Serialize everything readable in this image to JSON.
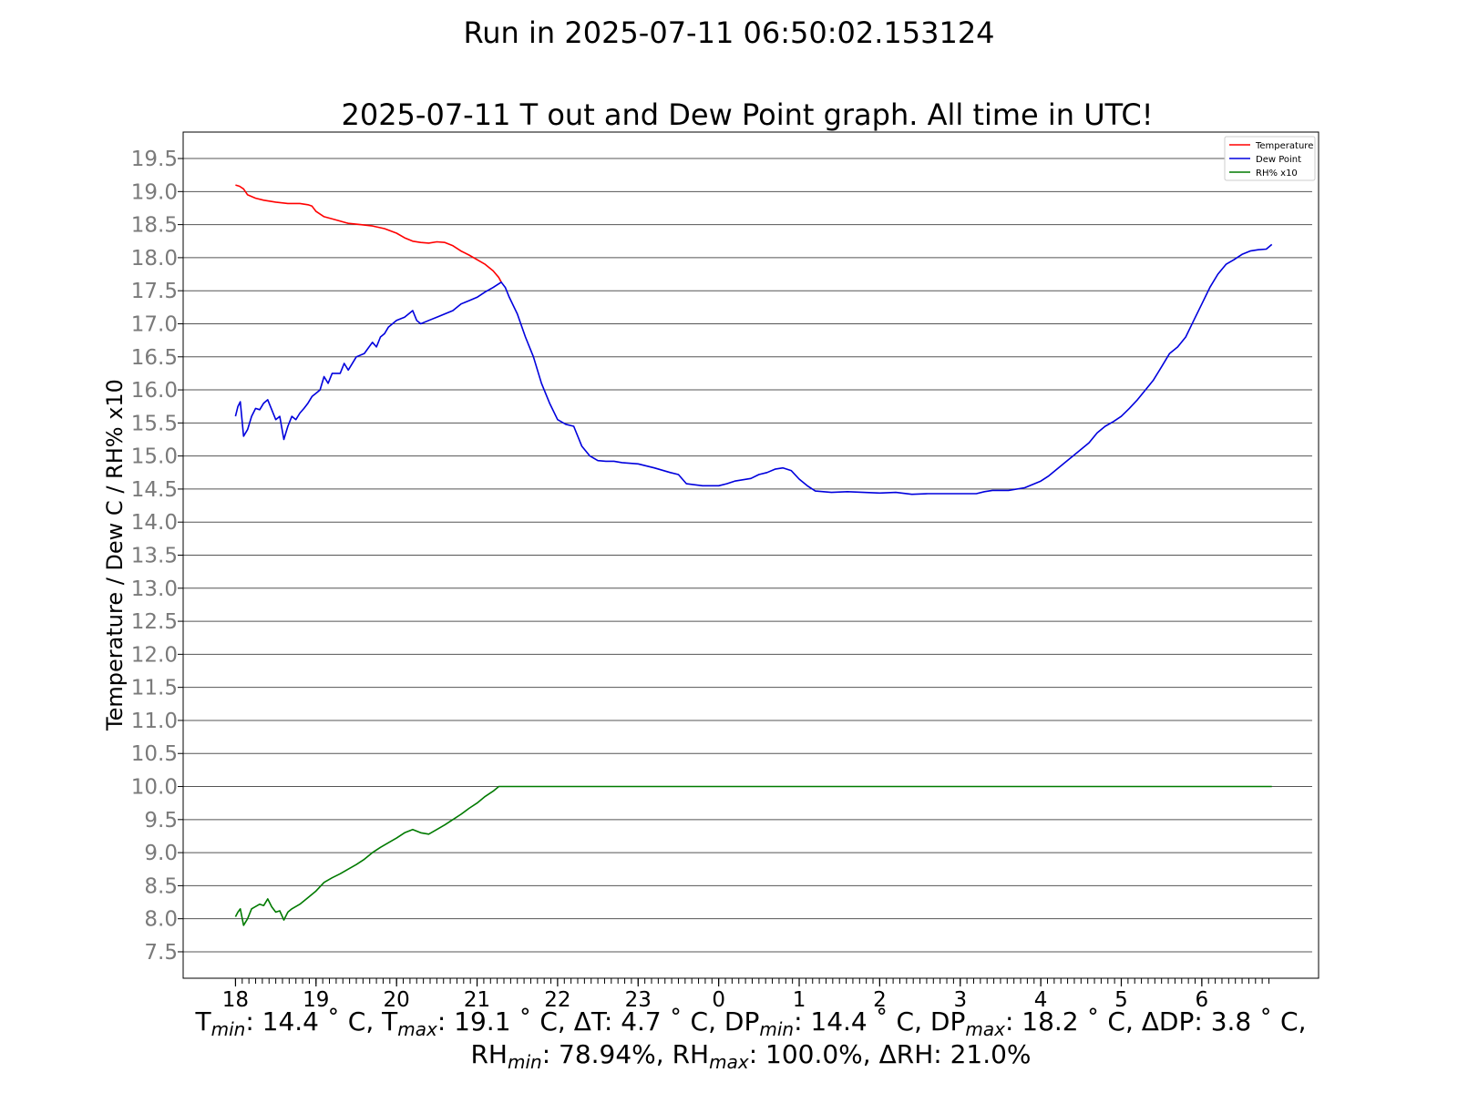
{
  "figure": {
    "suptitle": "Run in 2025-07-11 06:50:02.153124"
  },
  "chart_data": {
    "type": "line",
    "title": "2025-07-11 T out and Dew Point graph. All time in UTC!",
    "ylabel": "Temperature / Dew C / RH% x10",
    "xlabel": "",
    "ylim": [
      7.1,
      19.9
    ],
    "y_ticks": [
      "7.5",
      "8.0",
      "8.5",
      "9.0",
      "9.5",
      "10.0",
      "10.5",
      "11.0",
      "11.5",
      "12.0",
      "12.5",
      "13.0",
      "13.5",
      "14.0",
      "14.5",
      "15.0",
      "15.5",
      "16.0",
      "16.5",
      "17.0",
      "17.5",
      "18.0",
      "18.5",
      "19.0",
      "19.5"
    ],
    "x_ticks": [
      "18",
      "19",
      "20",
      "21",
      "22",
      "23",
      "0",
      "1",
      "2",
      "3",
      "4",
      "5",
      "6"
    ],
    "x_unit": "hour (UTC), hours elapsed from 18:00 on the x axis",
    "xlim": [
      -0.65,
      13.45
    ],
    "grid": "horizontal",
    "legend": "top-right",
    "series": [
      {
        "name": "Temperature",
        "color": "#ff0000",
        "points": [
          [
            0.0,
            19.1
          ],
          [
            0.05,
            19.08
          ],
          [
            0.1,
            19.04
          ],
          [
            0.15,
            18.95
          ],
          [
            0.25,
            18.9
          ],
          [
            0.35,
            18.87
          ],
          [
            0.5,
            18.84
          ],
          [
            0.65,
            18.82
          ],
          [
            0.8,
            18.82
          ],
          [
            0.9,
            18.8
          ],
          [
            0.95,
            18.78
          ],
          [
            1.0,
            18.7
          ],
          [
            1.1,
            18.62
          ],
          [
            1.25,
            18.57
          ],
          [
            1.4,
            18.52
          ],
          [
            1.55,
            18.5
          ],
          [
            1.7,
            18.48
          ],
          [
            1.85,
            18.44
          ],
          [
            2.0,
            18.37
          ],
          [
            2.1,
            18.3
          ],
          [
            2.2,
            18.25
          ],
          [
            2.3,
            18.23
          ],
          [
            2.4,
            18.22
          ],
          [
            2.5,
            18.24
          ],
          [
            2.6,
            18.23
          ],
          [
            2.7,
            18.18
          ],
          [
            2.8,
            18.1
          ],
          [
            2.9,
            18.04
          ],
          [
            3.0,
            17.97
          ],
          [
            3.1,
            17.9
          ],
          [
            3.2,
            17.8
          ],
          [
            3.27,
            17.7
          ],
          [
            3.3,
            17.63
          ]
        ]
      },
      {
        "name": "Dew Point",
        "color": "#0000dd",
        "points": [
          [
            0.0,
            15.6
          ],
          [
            0.03,
            15.75
          ],
          [
            0.06,
            15.82
          ],
          [
            0.1,
            15.3
          ],
          [
            0.15,
            15.4
          ],
          [
            0.2,
            15.6
          ],
          [
            0.25,
            15.72
          ],
          [
            0.3,
            15.7
          ],
          [
            0.35,
            15.8
          ],
          [
            0.4,
            15.85
          ],
          [
            0.45,
            15.7
          ],
          [
            0.5,
            15.55
          ],
          [
            0.55,
            15.6
          ],
          [
            0.6,
            15.25
          ],
          [
            0.65,
            15.45
          ],
          [
            0.7,
            15.6
          ],
          [
            0.75,
            15.55
          ],
          [
            0.8,
            15.65
          ],
          [
            0.85,
            15.72
          ],
          [
            0.9,
            15.8
          ],
          [
            0.95,
            15.9
          ],
          [
            1.0,
            15.95
          ],
          [
            1.05,
            16.0
          ],
          [
            1.1,
            16.2
          ],
          [
            1.15,
            16.1
          ],
          [
            1.2,
            16.25
          ],
          [
            1.3,
            16.25
          ],
          [
            1.35,
            16.4
          ],
          [
            1.4,
            16.3
          ],
          [
            1.5,
            16.5
          ],
          [
            1.6,
            16.55
          ],
          [
            1.7,
            16.72
          ],
          [
            1.75,
            16.65
          ],
          [
            1.8,
            16.8
          ],
          [
            1.85,
            16.85
          ],
          [
            1.9,
            16.95
          ],
          [
            2.0,
            17.05
          ],
          [
            2.1,
            17.1
          ],
          [
            2.2,
            17.2
          ],
          [
            2.25,
            17.05
          ],
          [
            2.3,
            17.0
          ],
          [
            2.4,
            17.05
          ],
          [
            2.5,
            17.1
          ],
          [
            2.6,
            17.15
          ],
          [
            2.7,
            17.2
          ],
          [
            2.8,
            17.3
          ],
          [
            2.9,
            17.35
          ],
          [
            3.0,
            17.4
          ],
          [
            3.1,
            17.48
          ],
          [
            3.2,
            17.55
          ],
          [
            3.3,
            17.63
          ],
          [
            3.35,
            17.55
          ],
          [
            3.4,
            17.4
          ],
          [
            3.5,
            17.15
          ],
          [
            3.6,
            16.8
          ],
          [
            3.7,
            16.5
          ],
          [
            3.8,
            16.1
          ],
          [
            3.9,
            15.8
          ],
          [
            4.0,
            15.55
          ],
          [
            4.1,
            15.48
          ],
          [
            4.2,
            15.45
          ],
          [
            4.3,
            15.15
          ],
          [
            4.4,
            15.0
          ],
          [
            4.5,
            14.93
          ],
          [
            4.6,
            14.92
          ],
          [
            4.7,
            14.92
          ],
          [
            4.8,
            14.9
          ],
          [
            5.0,
            14.88
          ],
          [
            5.2,
            14.82
          ],
          [
            5.4,
            14.75
          ],
          [
            5.5,
            14.72
          ],
          [
            5.6,
            14.58
          ],
          [
            5.8,
            14.55
          ],
          [
            6.0,
            14.55
          ],
          [
            6.1,
            14.58
          ],
          [
            6.2,
            14.62
          ],
          [
            6.4,
            14.66
          ],
          [
            6.5,
            14.72
          ],
          [
            6.6,
            14.75
          ],
          [
            6.7,
            14.8
          ],
          [
            6.8,
            14.82
          ],
          [
            6.9,
            14.78
          ],
          [
            7.0,
            14.65
          ],
          [
            7.1,
            14.55
          ],
          [
            7.2,
            14.47
          ],
          [
            7.4,
            14.45
          ],
          [
            7.6,
            14.46
          ],
          [
            7.8,
            14.45
          ],
          [
            8.0,
            14.44
          ],
          [
            8.2,
            14.45
          ],
          [
            8.4,
            14.42
          ],
          [
            8.6,
            14.43
          ],
          [
            8.8,
            14.43
          ],
          [
            9.0,
            14.43
          ],
          [
            9.2,
            14.43
          ],
          [
            9.3,
            14.46
          ],
          [
            9.4,
            14.48
          ],
          [
            9.6,
            14.48
          ],
          [
            9.8,
            14.52
          ],
          [
            10.0,
            14.62
          ],
          [
            10.1,
            14.7
          ],
          [
            10.2,
            14.8
          ],
          [
            10.3,
            14.9
          ],
          [
            10.4,
            15.0
          ],
          [
            10.5,
            15.1
          ],
          [
            10.6,
            15.2
          ],
          [
            10.7,
            15.35
          ],
          [
            10.8,
            15.45
          ],
          [
            10.9,
            15.52
          ],
          [
            11.0,
            15.6
          ],
          [
            11.1,
            15.72
          ],
          [
            11.2,
            15.85
          ],
          [
            11.3,
            16.0
          ],
          [
            11.4,
            16.15
          ],
          [
            11.5,
            16.35
          ],
          [
            11.6,
            16.55
          ],
          [
            11.7,
            16.65
          ],
          [
            11.8,
            16.8
          ],
          [
            11.9,
            17.05
          ],
          [
            12.0,
            17.3
          ],
          [
            12.1,
            17.55
          ],
          [
            12.2,
            17.75
          ],
          [
            12.3,
            17.9
          ],
          [
            12.4,
            17.97
          ],
          [
            12.5,
            18.05
          ],
          [
            12.6,
            18.1
          ],
          [
            12.7,
            18.12
          ],
          [
            12.8,
            18.13
          ],
          [
            12.87,
            18.2
          ]
        ]
      },
      {
        "name": "RH% x10",
        "color": "#007a00",
        "points": [
          [
            0.0,
            8.03
          ],
          [
            0.03,
            8.1
          ],
          [
            0.06,
            8.15
          ],
          [
            0.1,
            7.9
          ],
          [
            0.15,
            8.0
          ],
          [
            0.2,
            8.15
          ],
          [
            0.3,
            8.22
          ],
          [
            0.35,
            8.2
          ],
          [
            0.4,
            8.3
          ],
          [
            0.45,
            8.18
          ],
          [
            0.5,
            8.1
          ],
          [
            0.55,
            8.12
          ],
          [
            0.6,
            7.98
          ],
          [
            0.65,
            8.1
          ],
          [
            0.7,
            8.15
          ],
          [
            0.8,
            8.22
          ],
          [
            0.9,
            8.32
          ],
          [
            1.0,
            8.42
          ],
          [
            1.1,
            8.55
          ],
          [
            1.2,
            8.62
          ],
          [
            1.3,
            8.68
          ],
          [
            1.4,
            8.75
          ],
          [
            1.5,
            8.82
          ],
          [
            1.6,
            8.9
          ],
          [
            1.7,
            9.0
          ],
          [
            1.8,
            9.08
          ],
          [
            1.9,
            9.15
          ],
          [
            2.0,
            9.22
          ],
          [
            2.1,
            9.3
          ],
          [
            2.2,
            9.35
          ],
          [
            2.3,
            9.3
          ],
          [
            2.4,
            9.28
          ],
          [
            2.5,
            9.35
          ],
          [
            2.6,
            9.42
          ],
          [
            2.7,
            9.5
          ],
          [
            2.8,
            9.58
          ],
          [
            2.9,
            9.67
          ],
          [
            3.0,
            9.75
          ],
          [
            3.1,
            9.85
          ],
          [
            3.2,
            9.93
          ],
          [
            3.27,
            10.0
          ],
          [
            12.87,
            10.0
          ]
        ]
      }
    ]
  },
  "stats": {
    "line1": [
      {
        "main": "T",
        "sub": "min",
        "rest": ": 14.4 ˚ C,  "
      },
      {
        "main": "T",
        "sub": "max",
        "rest": ": 19.1 ˚ C,  "
      },
      {
        "main": "ΔT: 4.7 ˚ C,  ",
        "sub": "",
        "rest": ""
      },
      {
        "main": "DP",
        "sub": "min",
        "rest": ": 14.4 ˚ C,  "
      },
      {
        "main": "DP",
        "sub": "max",
        "rest": ": 18.2 ˚ C,  "
      },
      {
        "main": "ΔDP: 3.8 ˚ C,",
        "sub": "",
        "rest": ""
      }
    ],
    "line2": [
      {
        "main": "RH",
        "sub": "min",
        "rest": ": 78.94%,  "
      },
      {
        "main": "RH",
        "sub": "max",
        "rest": ": 100.0%,  "
      },
      {
        "main": "ΔRH: 21.0%",
        "sub": "",
        "rest": ""
      }
    ]
  }
}
